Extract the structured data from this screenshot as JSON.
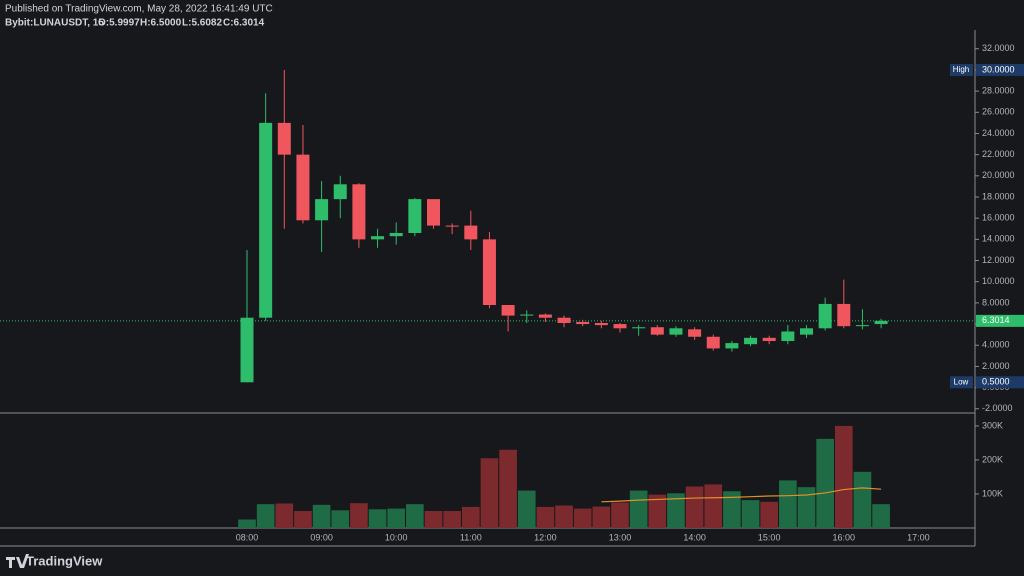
{
  "header": {
    "published": "Published on TradingView.com, May 28, 2022 16:41:49 UTC",
    "symbol": "Bybit:LUNAUSDT, 15",
    "ohlc": [
      "O:5.9997",
      "H:6.5000",
      "L:5.6082",
      "C:6.3014"
    ]
  },
  "chart_data": [
    {
      "type": "candlestick",
      "categories": [
        "08:00",
        null,
        null,
        null,
        "09:00",
        null,
        null,
        null,
        "10:00",
        null,
        null,
        null,
        "11:00",
        null,
        null,
        null,
        "12:00",
        null,
        null,
        null,
        "13:00",
        null,
        null,
        null,
        "14:00",
        null,
        null,
        null,
        "15:00",
        null,
        null,
        null,
        "16:00",
        null,
        null,
        null,
        "17:00"
      ],
      "open": [
        0.5,
        6.6,
        25,
        22,
        15.8,
        17.8,
        19.2,
        14,
        14.3,
        14.6,
        17.8,
        15.3,
        15.3,
        14,
        7.8,
        6.8,
        6.9,
        6.6,
        6.2,
        6.1,
        6.0,
        5.6,
        5.7,
        5.0,
        5.5,
        4.8,
        3.7,
        4.1,
        4.7,
        4.4,
        5.0,
        5.6,
        7.9,
        5.8,
        5.9997,
        null,
        null
      ],
      "high": [
        13,
        27.8,
        30,
        24.8,
        19.5,
        20,
        19.3,
        15,
        15.6,
        17.9,
        17.8,
        15.5,
        16.7,
        14.7,
        7.8,
        7.3,
        7.0,
        6.8,
        6.4,
        6.3,
        6.1,
        5.9,
        5.9,
        5.8,
        5.7,
        5.0,
        4.4,
        4.9,
        4.9,
        5.9,
        5.9,
        8.5,
        10.2,
        7.4,
        6.5,
        null,
        null
      ],
      "low": [
        0.5,
        6.3,
        15,
        15.5,
        12.8,
        16,
        13.2,
        13.2,
        13.5,
        14.3,
        15,
        14.5,
        13,
        7.5,
        5.3,
        6.1,
        6.2,
        5.7,
        5.8,
        5.6,
        5.2,
        4.9,
        4.9,
        4.8,
        4.5,
        3.5,
        3.4,
        3.9,
        4.1,
        4.1,
        4.7,
        5.4,
        5.6,
        5.5,
        5.6082,
        null,
        null
      ],
      "close": [
        6.6,
        25,
        22,
        15.8,
        17.8,
        19.2,
        14,
        14.3,
        14.6,
        17.8,
        15.3,
        15.2,
        14,
        7.8,
        6.8,
        6.9,
        6.6,
        6.1,
        6.0,
        5.9,
        5.6,
        5.7,
        5.0,
        5.6,
        4.8,
        3.7,
        4.2,
        4.7,
        4.4,
        5.3,
        5.6,
        7.9,
        5.8,
        5.9,
        6.3014,
        null,
        null
      ],
      "up_color": "#2ebd6b",
      "down_color": "#f0565d",
      "ylim": [
        -2.4,
        33.3
      ],
      "yticks": [
        {
          "value": -2,
          "label": "-2.0000"
        },
        {
          "value": 0,
          "label": "0.0000"
        },
        {
          "value": 2,
          "label": "2.0000"
        },
        {
          "value": 4,
          "label": "4.0000"
        },
        {
          "value": 6,
          "label": "6.0000"
        },
        {
          "value": 8,
          "label": "8.0000"
        },
        {
          "value": 10,
          "label": "10.0000"
        },
        {
          "value": 12,
          "label": "12.0000"
        },
        {
          "value": 14,
          "label": "14.0000"
        },
        {
          "value": 16,
          "label": "16.0000"
        },
        {
          "value": 18,
          "label": "18.0000"
        },
        {
          "value": 20,
          "label": "20.0000"
        },
        {
          "value": 22,
          "label": "22.0000"
        },
        {
          "value": 24,
          "label": "24.0000"
        },
        {
          "value": 26,
          "label": "26.0000"
        },
        {
          "value": 28,
          "label": "28.0000"
        },
        {
          "value": 30,
          "label": "30.0000"
        },
        {
          "value": 32,
          "label": "32.0000"
        }
      ],
      "high_marker": {
        "label": "High",
        "value": 30,
        "value_label": "30.0000"
      },
      "low_marker": {
        "label": "Low",
        "value": 0.5,
        "value_label": "0.5000"
      },
      "last_price": {
        "value": 6.3014,
        "value_label": "6.3014",
        "color": "#2ebd6b"
      }
    },
    {
      "type": "bar",
      "values": [
        25000,
        70000,
        72000,
        50000,
        68000,
        52000,
        73000,
        55000,
        57000,
        70000,
        50000,
        50000,
        62000,
        205000,
        230000,
        110000,
        62000,
        66000,
        57000,
        63000,
        75000,
        110000,
        98000,
        102000,
        122000,
        128000,
        108000,
        82000,
        77000,
        140000,
        120000,
        262000,
        300000,
        165000,
        70000
      ],
      "up_color": "#1f6b45",
      "down_color": "#7c2a2e",
      "ma": [
        null,
        null,
        null,
        null,
        null,
        null,
        null,
        null,
        null,
        null,
        null,
        null,
        null,
        null,
        null,
        null,
        null,
        null,
        null,
        77000,
        79000,
        82000,
        84000,
        86000,
        88000,
        89000,
        90000,
        92000,
        94000,
        95000,
        97000,
        103000,
        113000,
        118000,
        114000
      ],
      "ma_color": "#e0902a",
      "ylim": [
        0,
        338000
      ],
      "yticks": [
        {
          "value": 100000,
          "label": "100K"
        },
        {
          "value": 200000,
          "label": "200K"
        },
        {
          "value": 300000,
          "label": "300K"
        }
      ]
    }
  ],
  "footer": {
    "brand": "TradingView"
  }
}
